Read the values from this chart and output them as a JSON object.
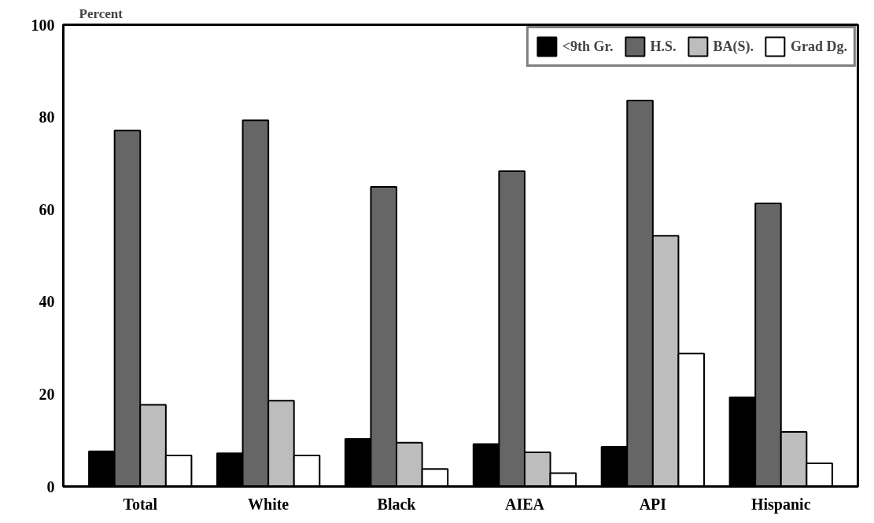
{
  "chart_data": {
    "type": "bar",
    "ylabel": "Percent",
    "categories": [
      "Total",
      "White",
      "Black",
      "AIEA",
      "API",
      "Hispanic"
    ],
    "series": [
      {
        "name": "<9th Gr.",
        "color": "#000000",
        "values": [
          7.6,
          7.2,
          10.3,
          9.2,
          8.6,
          19.3
        ]
      },
      {
        "name": "H.S.",
        "color": "#666666",
        "values": [
          77.1,
          79.3,
          64.9,
          68.3,
          83.6,
          61.3
        ]
      },
      {
        "name": "BA(S).",
        "color": "#bdbdbd",
        "values": [
          17.7,
          18.6,
          9.5,
          7.4,
          54.3,
          11.8
        ]
      },
      {
        "name": "Grad Dg.",
        "color": "#ffffff",
        "values": [
          6.7,
          6.7,
          3.8,
          2.9,
          28.8,
          5.0
        ]
      }
    ],
    "ylim": [
      0,
      100
    ],
    "yticks": [
      0,
      20,
      40,
      60,
      80,
      100
    ],
    "grid": false,
    "legend": "top right"
  }
}
